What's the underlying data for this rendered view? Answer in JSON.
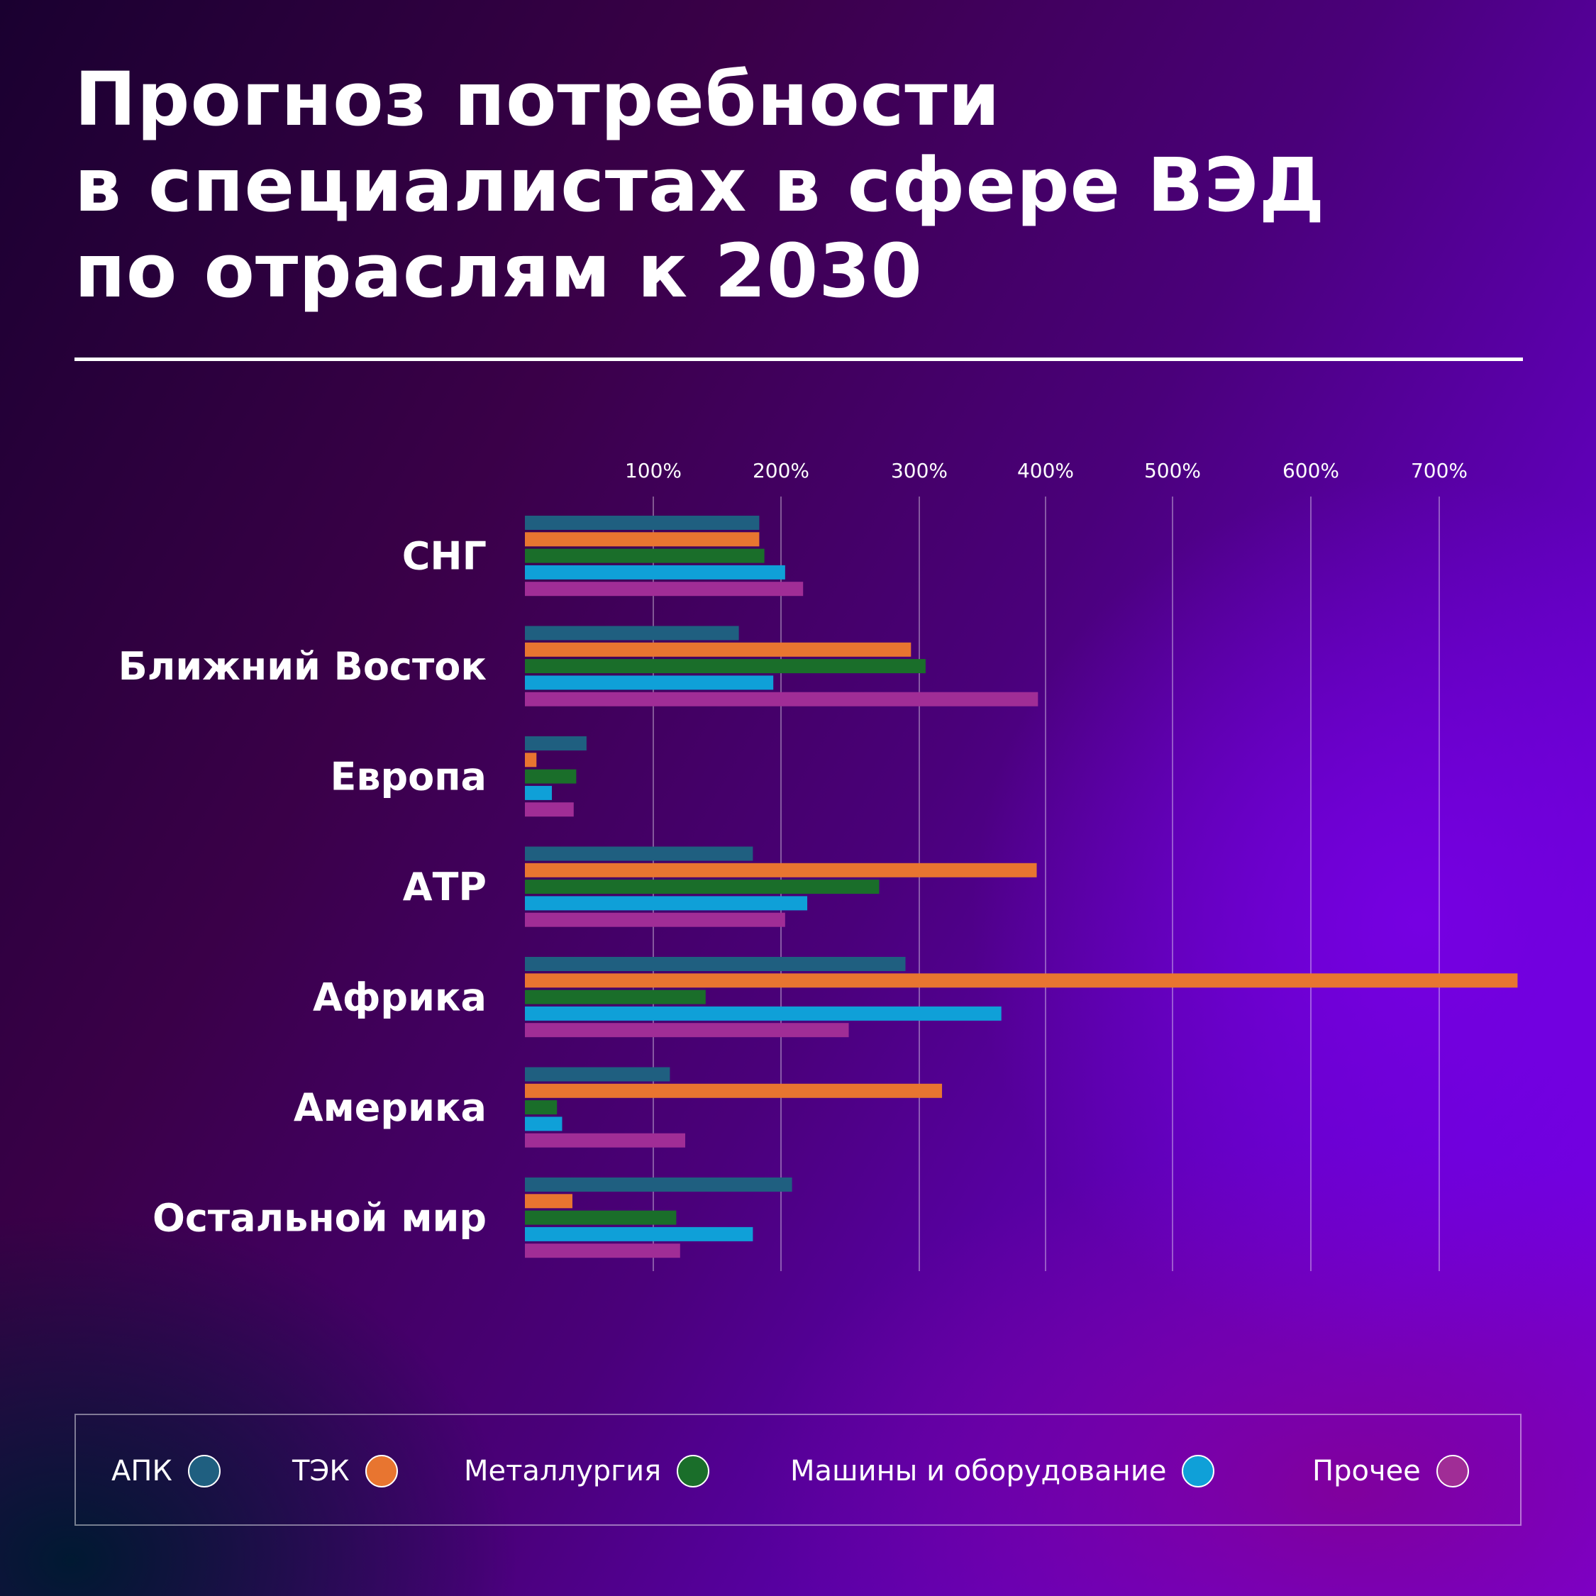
{
  "title_lines": [
    "Прогноз потребности",
    "в специалистах в сфере ВЭД",
    "по отраслям к 2030"
  ],
  "chart_data": {
    "type": "bar",
    "orientation": "horizontal",
    "categories": [
      "СНГ",
      "Ближний Восток",
      "Европа",
      "АТР",
      "Африка",
      "Америка",
      "Остальной мир"
    ],
    "x_ticks": [
      100,
      200,
      300,
      400,
      500,
      600,
      700
    ],
    "x_tick_labels": [
      "100%",
      "200%",
      "300%",
      "400%",
      "500%",
      "600%",
      "700%"
    ],
    "xlim": [
      0,
      770
    ],
    "grid": true,
    "legend_position": "bottom",
    "series": [
      {
        "name": "АПК",
        "color": "#1f5f80",
        "values": [
          183,
          167,
          48,
          178,
          290,
          113,
          208
        ]
      },
      {
        "name": "ТЭК",
        "color": "#e87530",
        "values": [
          183,
          294,
          9,
          393,
          761,
          318,
          37
        ]
      },
      {
        "name": "Металлургия",
        "color": "#1a6e2a",
        "values": [
          187,
          305,
          40,
          271,
          141,
          25,
          118
        ]
      },
      {
        "name": "Машины и оборудование",
        "color": "#0fa0d8",
        "values": [
          203,
          194,
          21,
          219,
          365,
          29,
          178
        ]
      },
      {
        "name": "Прочее",
        "color": "#a02d96",
        "values": [
          216,
          394,
          38,
          203,
          249,
          125,
          121
        ]
      }
    ]
  }
}
